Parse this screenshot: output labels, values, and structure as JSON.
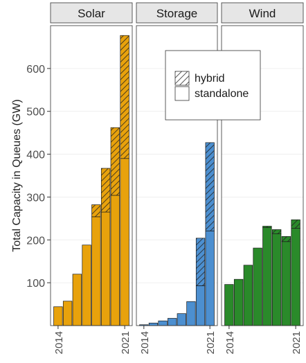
{
  "chart_data": {
    "type": "bar",
    "stacked": true,
    "facets": [
      "Solar",
      "Storage",
      "Wind"
    ],
    "ylabel": "Total Capacity in Queues (GW)",
    "xlabel": "",
    "ylim": [
      0,
      700
    ],
    "y_ticks": [
      100,
      200,
      300,
      400,
      500,
      600
    ],
    "x_ticks": [
      "2014",
      "2021"
    ],
    "years": [
      2014,
      2015,
      2016,
      2017,
      2018,
      2019,
      2020,
      2021
    ],
    "legend": {
      "position": "inside-top-center",
      "entries": [
        {
          "label": "hybrid",
          "fill": "hatched"
        },
        {
          "label": "standalone",
          "fill": "solid"
        }
      ]
    },
    "colors": {
      "Solar": "#E8A20C",
      "Storage": "#4C8FD0",
      "Wind": "#2A8A2A",
      "panel_strip": "#E6E6E6",
      "grid": "#EBEBEB"
    },
    "series": [
      {
        "facet": "Solar",
        "standalone": [
          44,
          57,
          120,
          188,
          254,
          265,
          304,
          390
        ],
        "hybrid": [
          0,
          0,
          0,
          0,
          28,
          102,
          158,
          287
        ]
      },
      {
        "facet": "Storage",
        "standalone": [
          2,
          6,
          11,
          17,
          28,
          56,
          93,
          221
        ],
        "hybrid": [
          0,
          0,
          0,
          0,
          0,
          0,
          111,
          206
        ]
      },
      {
        "facet": "Wind",
        "standalone": [
          96,
          108,
          141,
          181,
          229,
          214,
          196,
          227
        ],
        "hybrid": [
          0,
          0,
          0,
          0,
          3,
          10,
          12,
          20
        ]
      }
    ]
  }
}
